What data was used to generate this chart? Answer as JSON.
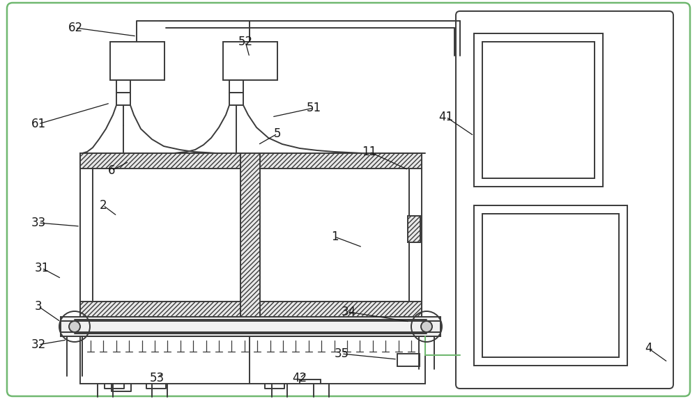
{
  "bg_color": "#ffffff",
  "line_color": "#3a3a3a",
  "green_line_color": "#70b870",
  "fig_width": 10.0,
  "fig_height": 5.73,
  "dpi": 100
}
